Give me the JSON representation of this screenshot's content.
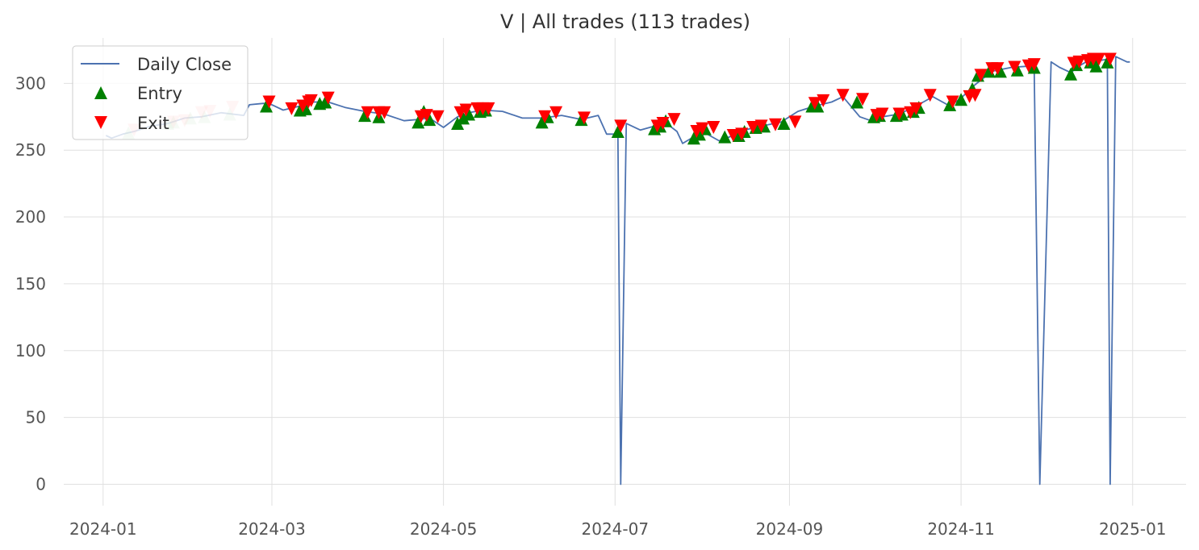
{
  "chart_data": {
    "type": "line",
    "title": "V | All trades (113 trades)",
    "xlabel": "",
    "ylabel": "",
    "x_range": [
      "2023-12-18",
      "2025-01-20"
    ],
    "ylim": [
      -16,
      334
    ],
    "y_ticks": [
      0,
      50,
      100,
      150,
      200,
      250,
      300
    ],
    "x_ticks": [
      "2024-01",
      "2024-03",
      "2024-05",
      "2024-07",
      "2024-09",
      "2024-11",
      "2025-01"
    ],
    "grid": true,
    "legend": {
      "placement": "top-left",
      "items": [
        {
          "label": "Daily Close",
          "marker": "line",
          "color": "#4c72b0"
        },
        {
          "label": "Entry",
          "marker": "triangle-up",
          "color": "#008000"
        },
        {
          "label": "Exit",
          "marker": "triangle-down",
          "color": "#ff0000"
        }
      ]
    },
    "series": [
      {
        "name": "Daily Close",
        "color": "#4c72b0",
        "points": [
          [
            "2024-01-02",
            261
          ],
          [
            "2024-01-04",
            259
          ],
          [
            "2024-01-08",
            262
          ],
          [
            "2024-01-12",
            264
          ],
          [
            "2024-01-18",
            268
          ],
          [
            "2024-01-24",
            270
          ],
          [
            "2024-01-30",
            274
          ],
          [
            "2024-02-05",
            275
          ],
          [
            "2024-02-12",
            278
          ],
          [
            "2024-02-20",
            276
          ],
          [
            "2024-02-22",
            284
          ],
          [
            "2024-02-27",
            285
          ],
          [
            "2024-03-01",
            284
          ],
          [
            "2024-03-05",
            280
          ],
          [
            "2024-03-11",
            283
          ],
          [
            "2024-03-15",
            286
          ],
          [
            "2024-03-21",
            286
          ],
          [
            "2024-03-27",
            282
          ],
          [
            "2024-04-03",
            279
          ],
          [
            "2024-04-10",
            277
          ],
          [
            "2024-04-17",
            272
          ],
          [
            "2024-04-22",
            273
          ],
          [
            "2024-04-26",
            274
          ],
          [
            "2024-05-01",
            267
          ],
          [
            "2024-05-06",
            275
          ],
          [
            "2024-05-10",
            278
          ],
          [
            "2024-05-15",
            280
          ],
          [
            "2024-05-22",
            279
          ],
          [
            "2024-05-29",
            274
          ],
          [
            "2024-06-05",
            274
          ],
          [
            "2024-06-12",
            276
          ],
          [
            "2024-06-19",
            273
          ],
          [
            "2024-06-25",
            276
          ],
          [
            "2024-06-28",
            262
          ],
          [
            "2024-07-01",
            262
          ],
          [
            "2024-07-02",
            262
          ],
          [
            "2024-07-03",
            0
          ],
          [
            "2024-07-05",
            270
          ],
          [
            "2024-07-10",
            265
          ],
          [
            "2024-07-15",
            268
          ],
          [
            "2024-07-18",
            272
          ],
          [
            "2024-07-23",
            264
          ],
          [
            "2024-07-25",
            255
          ],
          [
            "2024-07-29",
            260
          ],
          [
            "2024-08-01",
            264
          ],
          [
            "2024-08-07",
            257
          ],
          [
            "2024-08-12",
            261
          ],
          [
            "2024-08-16",
            265
          ],
          [
            "2024-08-22",
            268
          ],
          [
            "2024-08-29",
            271
          ],
          [
            "2024-09-04",
            279
          ],
          [
            "2024-09-10",
            283
          ],
          [
            "2024-09-16",
            286
          ],
          [
            "2024-09-20",
            290
          ],
          [
            "2024-09-26",
            275
          ],
          [
            "2024-09-30",
            272
          ],
          [
            "2024-10-04",
            275
          ],
          [
            "2024-10-10",
            277
          ],
          [
            "2024-10-16",
            283
          ],
          [
            "2024-10-22",
            290
          ],
          [
            "2024-10-28",
            283
          ],
          [
            "2024-11-01",
            289
          ],
          [
            "2024-11-06",
            299
          ],
          [
            "2024-11-12",
            309
          ],
          [
            "2024-11-19",
            312
          ],
          [
            "2024-11-26",
            313
          ],
          [
            "2024-11-27",
            313
          ],
          [
            "2024-11-29",
            0
          ],
          [
            "2024-12-03",
            316
          ],
          [
            "2024-12-06",
            312
          ],
          [
            "2024-12-10",
            308
          ],
          [
            "2024-12-13",
            313
          ],
          [
            "2024-12-17",
            318
          ],
          [
            "2024-12-20",
            317
          ],
          [
            "2024-12-23",
            318
          ],
          [
            "2024-12-24",
            0
          ],
          [
            "2024-12-26",
            320
          ],
          [
            "2024-12-30",
            316
          ],
          [
            "2024-12-31",
            316
          ]
        ]
      },
      {
        "name": "Entry",
        "color": "#008000",
        "points": [
          [
            "2024-01-10",
            263
          ],
          [
            "2024-01-24",
            270
          ],
          [
            "2024-01-26",
            271
          ],
          [
            "2024-02-01",
            274
          ],
          [
            "2024-02-06",
            275
          ],
          [
            "2024-02-15",
            277
          ],
          [
            "2024-02-28",
            283
          ],
          [
            "2024-03-11",
            280
          ],
          [
            "2024-03-13",
            281
          ],
          [
            "2024-03-18",
            285
          ],
          [
            "2024-03-20",
            286
          ],
          [
            "2024-04-03",
            276
          ],
          [
            "2024-04-08",
            275
          ],
          [
            "2024-04-22",
            271
          ],
          [
            "2024-04-24",
            279
          ],
          [
            "2024-04-26",
            273
          ],
          [
            "2024-05-06",
            270
          ],
          [
            "2024-05-08",
            274
          ],
          [
            "2024-05-10",
            277
          ],
          [
            "2024-05-14",
            279
          ],
          [
            "2024-05-16",
            280
          ],
          [
            "2024-06-05",
            271
          ],
          [
            "2024-06-07",
            275
          ],
          [
            "2024-06-19",
            273
          ],
          [
            "2024-07-02",
            264
          ],
          [
            "2024-07-15",
            266
          ],
          [
            "2024-07-17",
            268
          ],
          [
            "2024-07-19",
            272
          ],
          [
            "2024-07-29",
            259
          ],
          [
            "2024-07-31",
            262
          ],
          [
            "2024-08-02",
            266
          ],
          [
            "2024-08-09",
            260
          ],
          [
            "2024-08-14",
            261
          ],
          [
            "2024-08-16",
            264
          ],
          [
            "2024-08-20",
            267
          ],
          [
            "2024-08-23",
            268
          ],
          [
            "2024-08-30",
            270
          ],
          [
            "2024-09-09",
            283
          ],
          [
            "2024-09-11",
            283
          ],
          [
            "2024-09-25",
            286
          ],
          [
            "2024-10-01",
            275
          ],
          [
            "2024-10-03",
            276
          ],
          [
            "2024-10-09",
            276
          ],
          [
            "2024-10-11",
            277
          ],
          [
            "2024-10-15",
            279
          ],
          [
            "2024-10-17",
            282
          ],
          [
            "2024-10-28",
            284
          ],
          [
            "2024-11-01",
            288
          ],
          [
            "2024-11-05",
            296
          ],
          [
            "2024-11-07",
            306
          ],
          [
            "2024-11-11",
            309
          ],
          [
            "2024-11-15",
            309
          ],
          [
            "2024-11-21",
            310
          ],
          [
            "2024-11-27",
            312
          ],
          [
            "2024-12-10",
            307
          ],
          [
            "2024-12-12",
            314
          ],
          [
            "2024-12-17",
            316
          ],
          [
            "2024-12-19",
            313
          ],
          [
            "2024-12-23",
            316
          ]
        ]
      },
      {
        "name": "Exit",
        "color": "#ff0000",
        "points": [
          [
            "2024-01-12",
            265
          ],
          [
            "2024-01-26",
            271
          ],
          [
            "2024-01-30",
            272
          ],
          [
            "2024-02-05",
            278
          ],
          [
            "2024-02-08",
            279
          ],
          [
            "2024-02-16",
            282
          ],
          [
            "2024-02-29",
            286
          ],
          [
            "2024-03-08",
            281
          ],
          [
            "2024-03-12",
            283
          ],
          [
            "2024-03-14",
            286
          ],
          [
            "2024-03-15",
            287
          ],
          [
            "2024-03-21",
            289
          ],
          [
            "2024-04-04",
            278
          ],
          [
            "2024-04-08",
            278
          ],
          [
            "2024-04-10",
            278
          ],
          [
            "2024-04-23",
            275
          ],
          [
            "2024-04-25",
            276
          ],
          [
            "2024-04-29",
            275
          ],
          [
            "2024-05-07",
            278
          ],
          [
            "2024-05-09",
            280
          ],
          [
            "2024-05-13",
            281
          ],
          [
            "2024-05-15",
            281
          ],
          [
            "2024-05-17",
            281
          ],
          [
            "2024-06-06",
            275
          ],
          [
            "2024-06-10",
            278
          ],
          [
            "2024-06-20",
            274
          ],
          [
            "2024-07-03",
            268
          ],
          [
            "2024-07-16",
            268
          ],
          [
            "2024-07-18",
            270
          ],
          [
            "2024-07-22",
            273
          ],
          [
            "2024-07-30",
            264
          ],
          [
            "2024-08-01",
            266
          ],
          [
            "2024-08-05",
            267
          ],
          [
            "2024-08-12",
            261
          ],
          [
            "2024-08-15",
            262
          ],
          [
            "2024-08-19",
            267
          ],
          [
            "2024-08-22",
            268
          ],
          [
            "2024-08-27",
            269
          ],
          [
            "2024-09-03",
            271
          ],
          [
            "2024-09-10",
            285
          ],
          [
            "2024-09-13",
            287
          ],
          [
            "2024-09-20",
            291
          ],
          [
            "2024-09-27",
            288
          ],
          [
            "2024-10-02",
            276
          ],
          [
            "2024-10-04",
            277
          ],
          [
            "2024-10-10",
            277
          ],
          [
            "2024-10-14",
            278
          ],
          [
            "2024-10-16",
            281
          ],
          [
            "2024-10-21",
            291
          ],
          [
            "2024-10-29",
            286
          ],
          [
            "2024-11-04",
            290
          ],
          [
            "2024-11-06",
            291
          ],
          [
            "2024-11-08",
            306
          ],
          [
            "2024-11-12",
            311
          ],
          [
            "2024-11-14",
            311
          ],
          [
            "2024-11-20",
            312
          ],
          [
            "2024-11-25",
            313
          ],
          [
            "2024-11-27",
            314
          ],
          [
            "2024-12-11",
            315
          ],
          [
            "2024-12-13",
            316
          ],
          [
            "2024-12-16",
            317
          ],
          [
            "2024-12-18",
            318
          ],
          [
            "2024-12-20",
            318
          ],
          [
            "2024-12-24",
            318
          ]
        ]
      }
    ]
  }
}
